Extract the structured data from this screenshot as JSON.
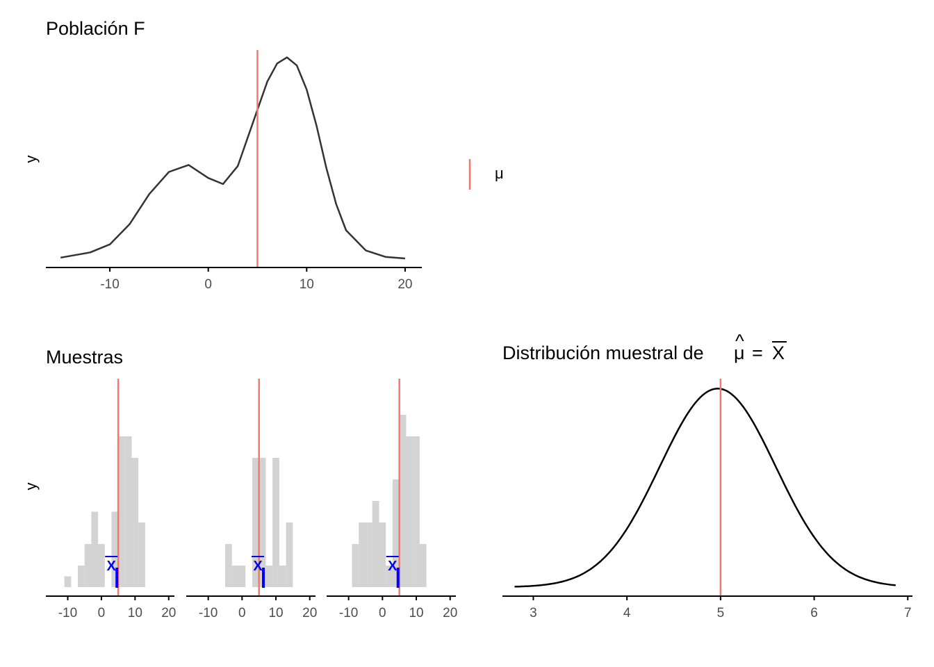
{
  "colors": {
    "mean_line": "#f8766d",
    "curve": "#333333",
    "sampling_curve": "#000000",
    "hist_fill": "#d3d3d3",
    "sample_mean": "#0000ff",
    "axis": "#000000",
    "tick_text": "#4d4d4d"
  },
  "legend": {
    "label": "μ"
  },
  "chart_data": [
    {
      "type": "line",
      "title": "Población  F",
      "xlabel": "",
      "ylabel": "y",
      "xlim": [
        -16.5,
        21.7
      ],
      "ylim": [
        0,
        1.04
      ],
      "xticks": [
        -10,
        0,
        10,
        20
      ],
      "grid": false,
      "mu": 5,
      "series": [
        {
          "x": [
            -15,
            -12,
            -10,
            -8,
            -6,
            -4,
            -2,
            0,
            1.5,
            3,
            5,
            6,
            7,
            8,
            9,
            10,
            11,
            12,
            13,
            14,
            16,
            18,
            20
          ],
          "values": [
            0.004,
            0.03,
            0.07,
            0.17,
            0.32,
            0.43,
            0.465,
            0.4,
            0.37,
            0.46,
            0.74,
            0.88,
            0.97,
            1.0,
            0.96,
            0.84,
            0.66,
            0.45,
            0.27,
            0.14,
            0.04,
            0.008,
            0.0
          ]
        }
      ]
    },
    {
      "type": "bar",
      "title": "Muestras",
      "xlabel": "",
      "ylabel": "y",
      "xlim": [
        -16.5,
        21.7
      ],
      "xticks": [
        -10,
        0,
        10,
        20
      ],
      "mu": 5,
      "panels": [
        {
          "bins": [
            [
              -11,
              1
            ],
            [
              -9,
              0
            ],
            [
              -7,
              2
            ],
            [
              -5,
              4
            ],
            [
              -3,
              7
            ],
            [
              -1,
              4
            ],
            [
              1,
              0
            ],
            [
              3,
              7
            ],
            [
              5,
              14
            ],
            [
              7,
              14
            ],
            [
              9,
              12
            ],
            [
              11,
              6
            ]
          ],
          "sample_mean": 4.6,
          "sample_mean_label": "X"
        },
        {
          "bins": [
            [
              -5,
              4
            ],
            [
              -3,
              2
            ],
            [
              -1,
              2
            ],
            [
              1,
              0
            ],
            [
              3,
              12
            ],
            [
              5,
              12
            ],
            [
              7,
              2
            ],
            [
              9,
              12
            ],
            [
              11,
              2
            ],
            [
              13,
              6
            ]
          ],
          "sample_mean": 6.3,
          "sample_mean_label": "X"
        },
        {
          "bins": [
            [
              -9,
              4
            ],
            [
              -7,
              6
            ],
            [
              -5,
              6
            ],
            [
              -3,
              8
            ],
            [
              -1,
              6
            ],
            [
              1,
              2
            ],
            [
              3,
              10
            ],
            [
              5,
              16
            ],
            [
              7,
              14
            ],
            [
              9,
              14
            ],
            [
              11,
              4
            ]
          ],
          "sample_mean": 4.6,
          "sample_mean_label": "X"
        }
      ]
    },
    {
      "type": "line",
      "title": "Distribución muestral de",
      "title_math": {
        "lhs": "μ",
        "rhs": "X"
      },
      "xlabel": "",
      "ylabel": "",
      "xlim": [
        2.67,
        7.05
      ],
      "ylim": [
        0,
        1.05
      ],
      "xticks": [
        3,
        4,
        5,
        6,
        7
      ],
      "mu": 5,
      "curve": {
        "mean": 4.97,
        "sd": 0.62,
        "from": 2.8,
        "to": 6.87
      }
    }
  ]
}
